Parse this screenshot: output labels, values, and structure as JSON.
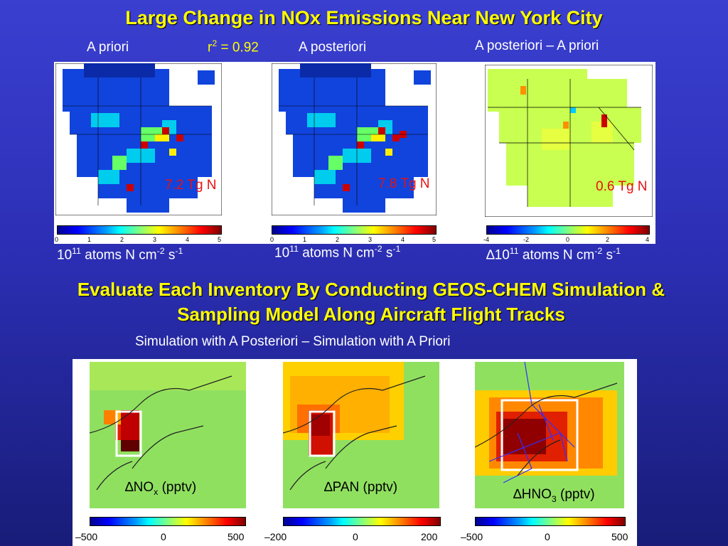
{
  "title": "Large Change in NOx Emissions Near New York City",
  "top": {
    "label_prior": "A priori",
    "r2_prefix": "r",
    "r2_exp": "2",
    "r2_value": " = 0.92",
    "label_post": "A posteriori",
    "label_diff": "A posteriori – A priori",
    "total_prior": "7.2 Tg N",
    "total_post": "7.8 Tg N",
    "total_diff": "0.6 Tg N",
    "ticks_abs": [
      "0",
      "1",
      "2",
      "3",
      "4",
      "5"
    ],
    "ticks_diff": [
      "-4",
      "-2",
      "0",
      "2",
      "4"
    ],
    "unit_base": "10",
    "unit_exp": "11",
    "unit_mid": " atoms N cm",
    "unit_exp2": "-2",
    "unit_mid2": " s",
    "unit_exp3": "-1",
    "delta": "∆"
  },
  "subtitle_line1": "Evaluate Each Inventory By Conducting GEOS-CHEM Simulation &",
  "subtitle_line2": "Sampling Model Along Aircraft Flight Tracks",
  "sim_caption": "Simulation with A Posteriori – Simulation with A Priori",
  "bottom": {
    "nox_label": "NO",
    "nox_sub": "x",
    "nox_unit": " (pptv)",
    "pan_label": "PAN (pptv)",
    "hno3_label": "HNO",
    "hno3_sub": "3",
    "hno3_unit": " (pptv)",
    "ticks_nox": [
      "–500",
      "0",
      "500"
    ],
    "ticks_pan": [
      "–200",
      "0",
      "200"
    ],
    "ticks_hno3": [
      "–500",
      "0",
      "500"
    ]
  },
  "colors": {
    "title": "#ffff00",
    "total": "#e81010",
    "panel_bg": "#ffffff"
  }
}
